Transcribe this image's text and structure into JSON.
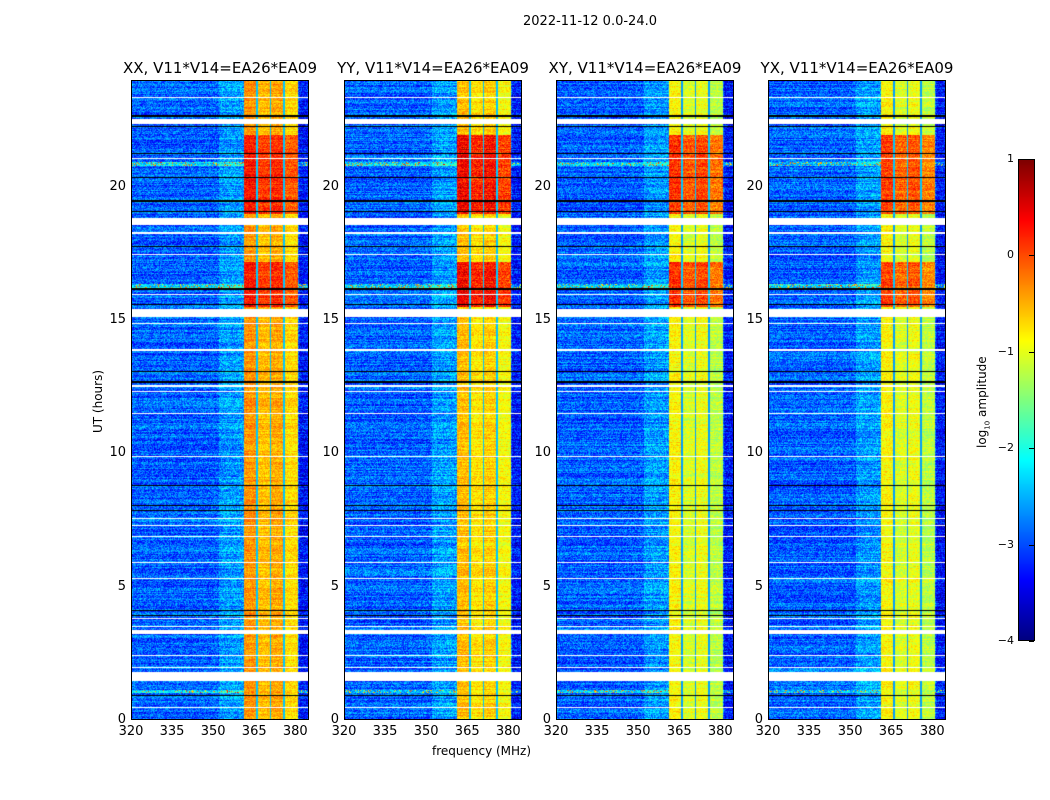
{
  "suptitle": "2022-11-12 0.0-24.0",
  "chart_data": {
    "type": "heatmap",
    "title": "2022-11-12 0.0-24.0",
    "xlabel": "frequency (MHz)",
    "ylabel": "UT (hours)",
    "xlim": [
      320,
      385
    ],
    "ylim": [
      0,
      24
    ],
    "xticks": [
      "320",
      "335",
      "350",
      "365",
      "380"
    ],
    "xtick_values": [
      320,
      335,
      350,
      365,
      380
    ],
    "yticks": [
      "0",
      "5",
      "10",
      "15",
      "20"
    ],
    "ytick_values": [
      0,
      5,
      10,
      15,
      20
    ],
    "panels": [
      {
        "title": "XX, V11*V14=EA26*EA09",
        "background_log_amp": -2.9,
        "band_log_amp": -0.6,
        "strong_log_amp": 0.2
      },
      {
        "title": "YY, V11*V14=EA26*EA09",
        "background_log_amp": -2.9,
        "band_log_amp": -0.8,
        "strong_log_amp": 0.4
      },
      {
        "title": "XY, V11*V14=EA26*EA09",
        "background_log_amp": -2.9,
        "band_log_amp": -0.9,
        "strong_log_amp": 0.1
      },
      {
        "title": "YX, V11*V14=EA26*EA09",
        "background_log_amp": -2.9,
        "band_log_amp": -0.9,
        "strong_log_amp": 0.0
      }
    ],
    "rfi_band_mhz": [
      361,
      381
    ],
    "subband_edges_mhz": [
      366,
      371,
      376
    ],
    "strong_periods_hours": [
      [
        15.5,
        17.2
      ],
      [
        19.0,
        22.0
      ]
    ],
    "flagged_gaps_hours": [
      [
        1.45,
        1.8
      ],
      [
        3.2,
        3.35
      ],
      [
        12.5,
        12.6
      ],
      [
        15.15,
        15.45
      ],
      [
        18.6,
        18.85
      ],
      [
        22.4,
        22.6
      ]
    ],
    "dark_lines_hours": [
      0.9,
      3.9,
      4.1,
      7.85,
      8.05,
      8.8,
      12.7,
      13.1,
      15.6,
      16.2,
      17.8,
      19.1,
      19.5,
      20.4,
      21.3,
      22.3,
      22.7
    ],
    "white_lines_hours": [
      0.45,
      1.95,
      2.4,
      3.5,
      3.8,
      5.3,
      5.9,
      6.9,
      7.3,
      7.55,
      9.9,
      11.5,
      12.35,
      13.9,
      14.9,
      16.0,
      17.5,
      18.3,
      21.1,
      23.4
    ],
    "colorbar": {
      "label": "log",
      "label_sub": "10",
      "label_rest": " amplitude",
      "range": [
        -4,
        1
      ],
      "ticks": [
        "1",
        "0",
        "−1",
        "−2",
        "−3",
        "−4"
      ],
      "tick_values": [
        1,
        0,
        -1,
        -2,
        -3,
        -4
      ],
      "colormap": "jet"
    }
  }
}
